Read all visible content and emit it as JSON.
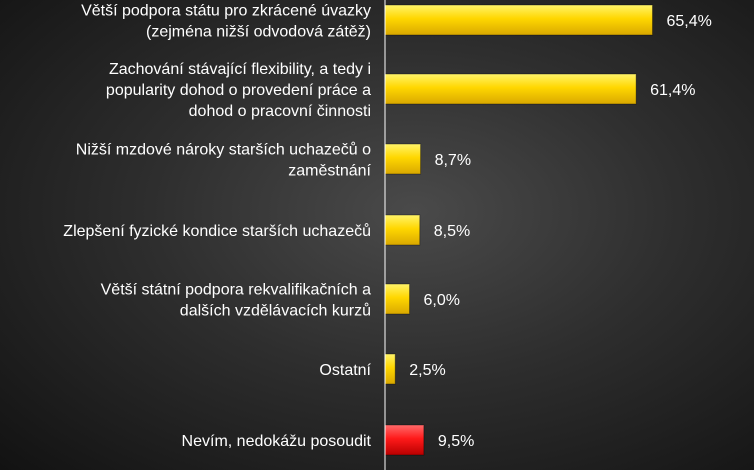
{
  "chart_data": {
    "type": "bar",
    "orientation": "horizontal",
    "categories": [
      [
        "Větší podpora státu pro zkrácené úvazky",
        "(zejména nižší odvodová zátěž)"
      ],
      [
        "Zachování stávající flexibility, a tedy i",
        "popularity dohod o provedení práce a",
        "dohod o pracovní činnosti"
      ],
      [
        "Nižší mzdové nároky starších uchazečů o",
        "zaměstnání"
      ],
      [
        "Zlepšení fyzické kondice starších uchazečů"
      ],
      [
        "Větší státní podpora rekvalifikačních a",
        "dalších vzdělávacích kurzů"
      ],
      [
        "Ostatní"
      ],
      [
        "Nevím, nedokážu posoudit"
      ]
    ],
    "values": [
      65.4,
      61.4,
      8.7,
      8.5,
      6.0,
      2.5,
      9.5
    ],
    "value_labels": [
      "65,4%",
      "61,4%",
      "8,7%",
      "8,5%",
      "6,0%",
      "2,5%",
      "9,5%"
    ],
    "bar_colors": [
      "#ffd700",
      "#ffd700",
      "#ffd700",
      "#ffd700",
      "#ffd700",
      "#ffd700",
      "#ff1a1a"
    ],
    "background": "#2e2e2e",
    "axis_color": "#ffffff",
    "grid": false,
    "legend": "none"
  }
}
